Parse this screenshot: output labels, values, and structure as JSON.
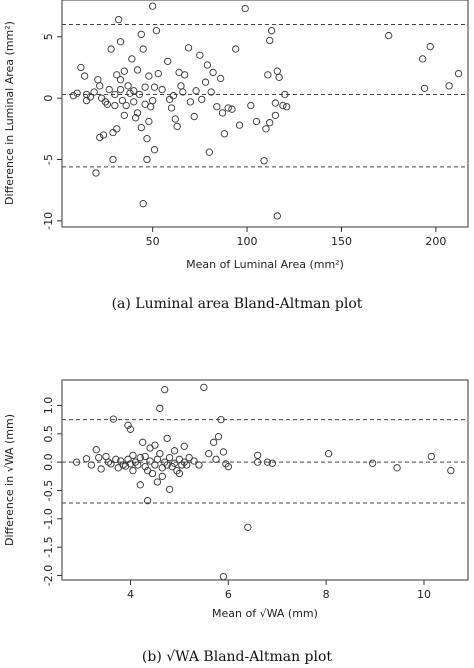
{
  "captions": {
    "a": "(a) Luminal area Bland-Altman plot",
    "b": "(b) √WA Bland-Altman plot"
  },
  "chart_data": [
    {
      "type": "scatter",
      "xlabel": "Mean of Luminal Area (mm²)",
      "ylabel": "Difference in Luminal Area (mm²)",
      "xlim": [
        2,
        217
      ],
      "ylim": [
        -10.5,
        8.0
      ],
      "xticks": [
        "50",
        "100",
        "150",
        "200"
      ],
      "yticks": [
        "5",
        "0",
        "-5",
        "-10"
      ],
      "xtick_values": [
        50,
        100,
        150,
        200
      ],
      "ytick_values": [
        5,
        0,
        -5,
        -10
      ],
      "reference_lines": [
        6.0,
        0.3,
        -5.6
      ],
      "marker": "open-circle",
      "points": [
        [
          8,
          0.2
        ],
        [
          10,
          0.4
        ],
        [
          12,
          2.5
        ],
        [
          14,
          1.8
        ],
        [
          15,
          -0.2
        ],
        [
          15,
          0.3
        ],
        [
          17,
          0.1
        ],
        [
          19,
          0.5
        ],
        [
          20,
          -6.1
        ],
        [
          21,
          1.5
        ],
        [
          22,
          1.0
        ],
        [
          22,
          -3.2
        ],
        [
          23,
          0.0
        ],
        [
          24,
          -3.0
        ],
        [
          25,
          -0.3
        ],
        [
          26,
          -0.5
        ],
        [
          27,
          0.7
        ],
        [
          28,
          4.0
        ],
        [
          29,
          -2.8
        ],
        [
          29,
          -5.0
        ],
        [
          30,
          0.3
        ],
        [
          30,
          -0.6
        ],
        [
          31,
          1.9
        ],
        [
          31,
          -2.5
        ],
        [
          32,
          6.4
        ],
        [
          33,
          4.6
        ],
        [
          33,
          1.5
        ],
        [
          33,
          0.7
        ],
        [
          34,
          -0.2
        ],
        [
          35,
          2.2
        ],
        [
          35,
          -1.4
        ],
        [
          36,
          -0.6
        ],
        [
          37,
          1.0
        ],
        [
          38,
          0.4
        ],
        [
          39,
          3.2
        ],
        [
          40,
          0.6
        ],
        [
          40,
          -0.3
        ],
        [
          41,
          -1.6
        ],
        [
          42,
          2.3
        ],
        [
          42,
          -1.2
        ],
        [
          43,
          0.3
        ],
        [
          44,
          5.2
        ],
        [
          44,
          -2.4
        ],
        [
          45,
          -8.6
        ],
        [
          45,
          4.0
        ],
        [
          46,
          0.9
        ],
        [
          46,
          -0.5
        ],
        [
          47,
          -3.3
        ],
        [
          47,
          -5.0
        ],
        [
          48,
          1.8
        ],
        [
          48,
          -1.9
        ],
        [
          49,
          -0.7
        ],
        [
          50,
          7.5
        ],
        [
          50,
          -0.2
        ],
        [
          51,
          0.9
        ],
        [
          51,
          -4.2
        ],
        [
          52,
          5.5
        ],
        [
          53,
          2.0
        ],
        [
          55,
          0.7
        ],
        [
          58,
          3.0
        ],
        [
          59,
          -0.1
        ],
        [
          60,
          -0.8
        ],
        [
          61,
          0.2
        ],
        [
          62,
          -1.7
        ],
        [
          63,
          -2.3
        ],
        [
          64,
          2.1
        ],
        [
          65,
          1.0
        ],
        [
          66,
          0.5
        ],
        [
          67,
          1.9
        ],
        [
          69,
          4.1
        ],
        [
          70,
          -0.3
        ],
        [
          72,
          -1.5
        ],
        [
          73,
          0.6
        ],
        [
          75,
          3.5
        ],
        [
          76,
          -0.1
        ],
        [
          78,
          1.3
        ],
        [
          79,
          2.7
        ],
        [
          80,
          -4.4
        ],
        [
          81,
          0.5
        ],
        [
          82,
          2.1
        ],
        [
          84,
          -0.7
        ],
        [
          86,
          1.6
        ],
        [
          87,
          -1.2
        ],
        [
          88,
          -2.9
        ],
        [
          90,
          -0.8
        ],
        [
          92,
          -0.9
        ],
        [
          94,
          4.0
        ],
        [
          96,
          -2.2
        ],
        [
          99,
          7.3
        ],
        [
          102,
          -0.6
        ],
        [
          105,
          -1.9
        ],
        [
          109,
          -5.1
        ],
        [
          110,
          -2.5
        ],
        [
          111,
          1.9
        ],
        [
          112,
          -2.0
        ],
        [
          112,
          4.7
        ],
        [
          113,
          5.5
        ],
        [
          115,
          -0.4
        ],
        [
          115,
          -1.4
        ],
        [
          116,
          2.2
        ],
        [
          116,
          -9.6
        ],
        [
          117,
          1.7
        ],
        [
          119,
          -0.6
        ],
        [
          120,
          0.3
        ],
        [
          121,
          -0.7
        ],
        [
          175,
          5.1
        ],
        [
          193,
          3.2
        ],
        [
          194,
          0.8
        ],
        [
          197,
          4.2
        ],
        [
          207,
          1.0
        ],
        [
          212,
          2.0
        ]
      ]
    },
    {
      "type": "scatter",
      "xlabel": "Mean of √WA (mm)",
      "ylabel": "Difference in √WA (mm)",
      "xlim": [
        2.6,
        10.9
      ],
      "ylim": [
        -2.08,
        1.45
      ],
      "xticks": [
        "4",
        "6",
        "8",
        "10"
      ],
      "yticks": [
        "1.0",
        "0.5",
        "0.0",
        "-0.5",
        "-1.0",
        "-1.5",
        "-2.0"
      ],
      "xtick_values": [
        4,
        6,
        8,
        10
      ],
      "ytick_values": [
        1.0,
        0.5,
        0.0,
        -0.5,
        -1.0,
        -1.5,
        -2.0
      ],
      "reference_lines": [
        0.75,
        0.0,
        -0.72
      ],
      "marker": "open-circle",
      "points": [
        [
          2.9,
          0.0
        ],
        [
          3.1,
          0.06
        ],
        [
          3.2,
          -0.05
        ],
        [
          3.3,
          0.22
        ],
        [
          3.35,
          0.08
        ],
        [
          3.4,
          -0.12
        ],
        [
          3.5,
          0.1
        ],
        [
          3.55,
          0.0
        ],
        [
          3.6,
          -0.03
        ],
        [
          3.65,
          0.76
        ],
        [
          3.7,
          0.05
        ],
        [
          3.75,
          -0.1
        ],
        [
          3.8,
          0.02
        ],
        [
          3.85,
          -0.05
        ],
        [
          3.9,
          -0.07
        ],
        [
          3.95,
          0.65
        ],
        [
          3.95,
          0.05
        ],
        [
          4.0,
          0.58
        ],
        [
          4.0,
          -0.03
        ],
        [
          4.05,
          -0.15
        ],
        [
          4.05,
          0.12
        ],
        [
          4.1,
          0.0
        ],
        [
          4.15,
          -0.05
        ],
        [
          4.2,
          0.08
        ],
        [
          4.2,
          -0.4
        ],
        [
          4.25,
          0.35
        ],
        [
          4.3,
          0.1
        ],
        [
          4.3,
          -0.08
        ],
        [
          4.35,
          -0.68
        ],
        [
          4.35,
          -0.15
        ],
        [
          4.4,
          0.25
        ],
        [
          4.4,
          0.02
        ],
        [
          4.45,
          -0.2
        ],
        [
          4.5,
          0.3
        ],
        [
          4.5,
          -0.05
        ],
        [
          4.55,
          -0.35
        ],
        [
          4.55,
          0.05
        ],
        [
          4.6,
          0.95
        ],
        [
          4.6,
          0.15
        ],
        [
          4.65,
          -0.1
        ],
        [
          4.65,
          -0.25
        ],
        [
          4.7,
          1.28
        ],
        [
          4.7,
          0.0
        ],
        [
          4.75,
          -0.05
        ],
        [
          4.75,
          0.42
        ],
        [
          4.8,
          -0.48
        ],
        [
          4.8,
          0.08
        ],
        [
          4.85,
          -0.08
        ],
        [
          4.9,
          0.2
        ],
        [
          4.9,
          -0.02
        ],
        [
          4.95,
          -0.15
        ],
        [
          5.0,
          0.05
        ],
        [
          5.0,
          -0.2
        ],
        [
          5.05,
          -0.05
        ],
        [
          5.1,
          0.28
        ],
        [
          5.1,
          0.0
        ],
        [
          5.15,
          -0.05
        ],
        [
          5.2,
          0.08
        ],
        [
          5.3,
          0.02
        ],
        [
          5.4,
          -0.05
        ],
        [
          5.5,
          1.32
        ],
        [
          5.6,
          0.15
        ],
        [
          5.7,
          0.35
        ],
        [
          5.75,
          0.05
        ],
        [
          5.8,
          0.45
        ],
        [
          5.85,
          0.75
        ],
        [
          5.9,
          0.18
        ],
        [
          5.95,
          -0.03
        ],
        [
          6.0,
          -0.08
        ],
        [
          5.9,
          -2.02
        ],
        [
          6.4,
          -1.15
        ],
        [
          6.6,
          0.12
        ],
        [
          6.6,
          0.0
        ],
        [
          6.8,
          0.0
        ],
        [
          6.9,
          -0.02
        ],
        [
          8.05,
          0.15
        ],
        [
          8.95,
          -0.02
        ],
        [
          9.45,
          -0.1
        ],
        [
          10.15,
          0.1
        ],
        [
          10.55,
          -0.15
        ]
      ]
    }
  ]
}
